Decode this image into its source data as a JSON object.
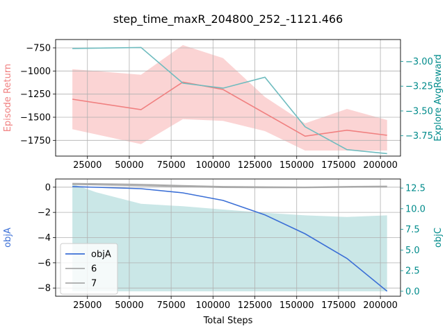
{
  "figure": {
    "title": "step_time_maxR_204800_252_-1121.466"
  },
  "chart_data": [
    {
      "type": "line",
      "panel": "top",
      "xlabel": "",
      "ylabel": "Episode Return",
      "ylabel_color": "#f08080",
      "y2label": "Explore AvgReward",
      "y2label_color": "#008b8b",
      "xlim": [
        6000,
        212000
      ],
      "ylim": [
        -1920,
        -660
      ],
      "y2lim": [
        -3.955,
        -2.78
      ],
      "grid": true,
      "x_ticks": [
        25000,
        50000,
        75000,
        100000,
        125000,
        150000,
        175000,
        200000
      ],
      "x_tick_labels": [
        "25000",
        "50000",
        "75000",
        "100000",
        "125000",
        "150000",
        "175000",
        "200000"
      ],
      "y_ticks": [
        -750,
        -1000,
        -1250,
        -1500,
        -1750
      ],
      "y_tick_labels": [
        "−750",
        "−1000",
        "−1250",
        "−1500",
        "−1750"
      ],
      "y2_ticks": [
        -3.0,
        -3.25,
        -3.5,
        -3.75
      ],
      "y2_tick_labels": [
        "−3.00",
        "−3.25",
        "−3.50",
        "−3.75"
      ],
      "series": [
        {
          "axis": "left",
          "style": "line",
          "color": "#f08080",
          "x": [
            16000,
            57000,
            82000,
            106000,
            155000,
            180000,
            204000
          ],
          "y": [
            -1305,
            -1418,
            -1120,
            -1200,
            -1705,
            -1640,
            -1695
          ]
        },
        {
          "axis": "left",
          "style": "band",
          "color": "#f6a0a0",
          "x": [
            16000,
            57000,
            82000,
            106000,
            131000,
            155000,
            180000,
            204000
          ],
          "upper": [
            -980,
            -1040,
            -720,
            -860,
            -1280,
            -1565,
            -1410,
            -1530
          ],
          "lower": [
            -1630,
            -1790,
            -1520,
            -1540,
            -1650,
            -1860,
            -1860,
            -1860
          ]
        },
        {
          "axis": "right",
          "style": "line",
          "color": "#6fbcbf",
          "x": [
            16000,
            57000,
            82000,
            106000,
            131000,
            155000,
            180000,
            204000
          ],
          "y": [
            -2.87,
            -2.86,
            -3.22,
            -3.27,
            -3.16,
            -3.66,
            -3.89,
            -3.93
          ]
        }
      ]
    },
    {
      "type": "line",
      "panel": "bottom",
      "xlabel": "Total Steps",
      "ylabel": "objA",
      "ylabel_color": "#3b6fd6",
      "y2label": "objC",
      "y2label_color": "#008b8b",
      "xlim": [
        6000,
        212000
      ],
      "ylim": [
        -8.65,
        0.65
      ],
      "y2lim": [
        -0.6,
        13.6
      ],
      "grid": true,
      "x_ticks": [
        25000,
        50000,
        75000,
        100000,
        125000,
        150000,
        175000,
        200000
      ],
      "x_tick_labels": [
        "25000",
        "50000",
        "75000",
        "100000",
        "125000",
        "150000",
        "175000",
        "200000"
      ],
      "y_ticks": [
        0,
        -2,
        -4,
        -6,
        -8
      ],
      "y_tick_labels": [
        "0",
        "−2",
        "−4",
        "−6",
        "−8"
      ],
      "y2_ticks": [
        0.0,
        2.5,
        5.0,
        7.5,
        10.0,
        12.5
      ],
      "y2_tick_labels": [
        "0.0",
        "2.5",
        "5.0",
        "7.5",
        "10.0",
        "12.5"
      ],
      "legend": {
        "placement": "lower-left",
        "entries": [
          {
            "label": "objA",
            "color": "#3b6fd6"
          },
          {
            "label": "6",
            "color": "#a9a9a9"
          },
          {
            "label": "7",
            "color": "#a9a9a9"
          }
        ]
      },
      "series": [
        {
          "axis": "right",
          "style": "area",
          "color": "#9fd4d4",
          "x": [
            16000,
            30000,
            57000,
            82000,
            106000,
            131000,
            155000,
            180000,
            204000
          ],
          "y": [
            13.0,
            12.0,
            10.6,
            10.3,
            9.9,
            9.5,
            9.2,
            9.0,
            9.2
          ]
        },
        {
          "axis": "left",
          "style": "line",
          "name": "objA",
          "color": "#3b6fd6",
          "x": [
            16000,
            57000,
            82000,
            106000,
            131000,
            155000,
            180000,
            204000
          ],
          "y": [
            0.05,
            -0.12,
            -0.45,
            -1.05,
            -2.2,
            -3.7,
            -5.65,
            -8.25
          ]
        },
        {
          "axis": "left",
          "style": "line",
          "name": "6",
          "color": "#a9a9a9",
          "x": [
            16000,
            57000,
            82000,
            106000,
            131000,
            155000,
            180000,
            204000
          ],
          "y": [
            0.3,
            0.22,
            0.12,
            0.05,
            0.02,
            0.0,
            0.05,
            0.08
          ]
        },
        {
          "axis": "left",
          "style": "line",
          "name": "7",
          "color": "#a9a9a9",
          "x": [
            16000,
            57000,
            82000,
            106000,
            131000,
            155000,
            180000,
            204000
          ],
          "y": [
            0.22,
            0.12,
            0.05,
            -0.02,
            -0.03,
            -0.03,
            0.0,
            0.02
          ]
        }
      ]
    }
  ]
}
